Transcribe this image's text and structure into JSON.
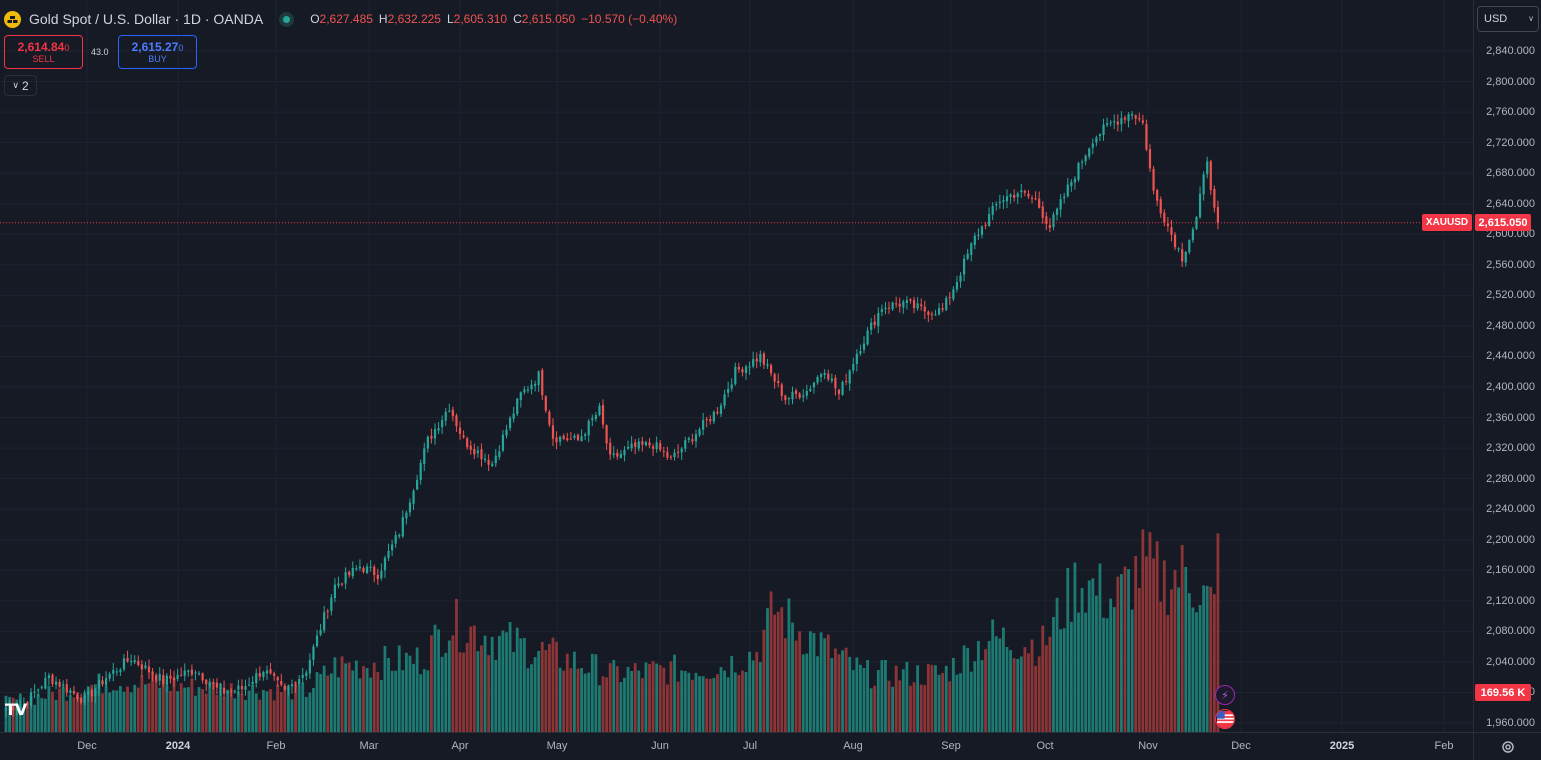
{
  "header": {
    "title": "Gold Spot / U.S. Dollar · 1D · OANDA",
    "ohlc": {
      "o_label": "O",
      "o": "2,627.485",
      "h_label": "H",
      "h": "2,632.225",
      "l_label": "L",
      "l": "2,605.310",
      "c_label": "C",
      "c": "2,615.050",
      "change": "−10.570 (−0.40%)"
    },
    "icon": "gold-coin-icon"
  },
  "trade": {
    "sell_price": "2,614.84",
    "sell_sup": "0",
    "sell_label": "SELL",
    "spread": "43.0",
    "buy_price": "2,615.27",
    "buy_sup": "0",
    "buy_label": "BUY"
  },
  "indicators_toggle": {
    "count": "2"
  },
  "currency": "USD",
  "last_price_tag": {
    "symbol": "XAUUSD",
    "price": "2,615.050"
  },
  "volume_tag": "169.56 K",
  "logo": "TV",
  "colors": {
    "bg": "#161a25",
    "up": "#26a69a",
    "down": "#ef5350",
    "up_vol": "#1d7a72",
    "down_vol": "#8c3537",
    "grid": "#1f2330",
    "accent_red": "#f23645"
  },
  "chart_data": {
    "type": "candlestick",
    "title": "Gold Spot / U.S. Dollar · 1D · OANDA",
    "ylim": [
      1940,
      2860
    ],
    "y_ticks": [
      "2,840.000",
      "2,800.000",
      "2,760.000",
      "2,720.000",
      "2,680.000",
      "2,640.000",
      "2,600.000",
      "2,560.000",
      "2,520.000",
      "2,480.000",
      "2,440.000",
      "2,400.000",
      "2,360.000",
      "2,320.000",
      "2,280.000",
      "2,240.000",
      "2,200.000",
      "2,160.000",
      "2,120.000",
      "2,080.000",
      "2,040.000",
      "2,000.000",
      "1,960.000"
    ],
    "x_ticks": [
      {
        "label": "Dec",
        "bold": false
      },
      {
        "label": "2024",
        "bold": true
      },
      {
        "label": "Feb",
        "bold": false
      },
      {
        "label": "Mar",
        "bold": false
      },
      {
        "label": "Apr",
        "bold": false
      },
      {
        "label": "May",
        "bold": false
      },
      {
        "label": "Jun",
        "bold": false
      },
      {
        "label": "Jul",
        "bold": false
      },
      {
        "label": "Aug",
        "bold": false
      },
      {
        "label": "Sep",
        "bold": false
      },
      {
        "label": "Oct",
        "bold": false
      },
      {
        "label": "Nov",
        "bold": false
      },
      {
        "label": "Dec",
        "bold": false
      },
      {
        "label": "2025",
        "bold": true
      },
      {
        "label": "Feb",
        "bold": false
      }
    ],
    "last_close": 2615.05,
    "close_anchors": [
      [
        0,
        1980
      ],
      [
        5,
        1985
      ],
      [
        12,
        2020
      ],
      [
        22,
        1990
      ],
      [
        28,
        2020
      ],
      [
        35,
        2045
      ],
      [
        44,
        2015
      ],
      [
        53,
        2030
      ],
      [
        60,
        2000
      ],
      [
        66,
        2005
      ],
      [
        72,
        2030
      ],
      [
        78,
        2000
      ],
      [
        84,
        2030
      ],
      [
        92,
        2140
      ],
      [
        99,
        2165
      ],
      [
        104,
        2155
      ],
      [
        110,
        2210
      ],
      [
        118,
        2330
      ],
      [
        124,
        2375
      ],
      [
        128,
        2330
      ],
      [
        136,
        2300
      ],
      [
        144,
        2390
      ],
      [
        149,
        2415
      ],
      [
        153,
        2335
      ],
      [
        160,
        2330
      ],
      [
        166,
        2370
      ],
      [
        169,
        2305
      ],
      [
        175,
        2320
      ],
      [
        181,
        2325
      ],
      [
        186,
        2305
      ],
      [
        191,
        2330
      ],
      [
        199,
        2370
      ],
      [
        204,
        2420
      ],
      [
        211,
        2440
      ],
      [
        218,
        2385
      ],
      [
        224,
        2395
      ],
      [
        229,
        2425
      ],
      [
        233,
        2390
      ],
      [
        238,
        2445
      ],
      [
        245,
        2505
      ],
      [
        251,
        2510
      ],
      [
        257,
        2500
      ],
      [
        262,
        2500
      ],
      [
        266,
        2540
      ],
      [
        271,
        2595
      ],
      [
        278,
        2645
      ],
      [
        283,
        2655
      ],
      [
        288,
        2645
      ],
      [
        292,
        2610
      ],
      [
        297,
        2660
      ],
      [
        304,
        2725
      ],
      [
        309,
        2745
      ],
      [
        315,
        2760
      ],
      [
        318,
        2745
      ],
      [
        321,
        2655
      ],
      [
        326,
        2600
      ],
      [
        329,
        2570
      ],
      [
        333,
        2620
      ],
      [
        336,
        2700
      ],
      [
        338,
        2630
      ],
      [
        339,
        2615
      ]
    ],
    "volume_anchors": [
      [
        0,
        20
      ],
      [
        30,
        35
      ],
      [
        60,
        30
      ],
      [
        84,
        28
      ],
      [
        92,
        45
      ],
      [
        116,
        50
      ],
      [
        124,
        75
      ],
      [
        150,
        55
      ],
      [
        170,
        40
      ],
      [
        200,
        45
      ],
      [
        210,
        55
      ],
      [
        215,
        85
      ],
      [
        222,
        70
      ],
      [
        240,
        40
      ],
      [
        262,
        40
      ],
      [
        275,
        65
      ],
      [
        290,
        60
      ],
      [
        300,
        105
      ],
      [
        310,
        90
      ],
      [
        318,
        115
      ],
      [
        324,
        105
      ],
      [
        330,
        110
      ],
      [
        338,
        85
      ],
      [
        339,
        125
      ]
    ]
  }
}
